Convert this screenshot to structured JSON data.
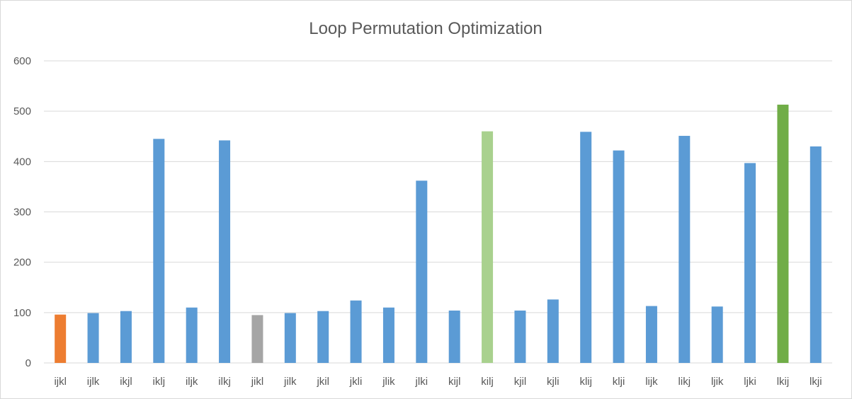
{
  "chart_data": {
    "type": "bar",
    "title": "Loop Permutation Optimization",
    "xlabel": "",
    "ylabel": "",
    "ylim": [
      0,
      600
    ],
    "yticks": [
      0,
      100,
      200,
      300,
      400,
      500,
      600
    ],
    "grid": true,
    "legend": "none",
    "categories": [
      "ijkl",
      "ijlk",
      "ikjl",
      "iklj",
      "iljk",
      "ilkj",
      "jikl",
      "jilk",
      "jkil",
      "jkli",
      "jlik",
      "jlki",
      "kijl",
      "kilj",
      "kjil",
      "kjli",
      "klij",
      "klji",
      "lijk",
      "likj",
      "ljik",
      "ljki",
      "lkij",
      "lkji"
    ],
    "values": [
      96,
      99,
      103,
      445,
      110,
      442,
      95,
      99,
      103,
      124,
      110,
      362,
      104,
      460,
      104,
      126,
      459,
      422,
      113,
      451,
      112,
      397,
      513,
      430
    ],
    "colors": [
      "#ed7d31",
      "#5b9bd5",
      "#5b9bd5",
      "#5b9bd5",
      "#5b9bd5",
      "#5b9bd5",
      "#a5a5a5",
      "#5b9bd5",
      "#5b9bd5",
      "#5b9bd5",
      "#5b9bd5",
      "#5b9bd5",
      "#5b9bd5",
      "#a9d18e",
      "#5b9bd5",
      "#5b9bd5",
      "#5b9bd5",
      "#5b9bd5",
      "#5b9bd5",
      "#5b9bd5",
      "#5b9bd5",
      "#5b9bd5",
      "#70ad47",
      "#5b9bd5"
    ]
  }
}
